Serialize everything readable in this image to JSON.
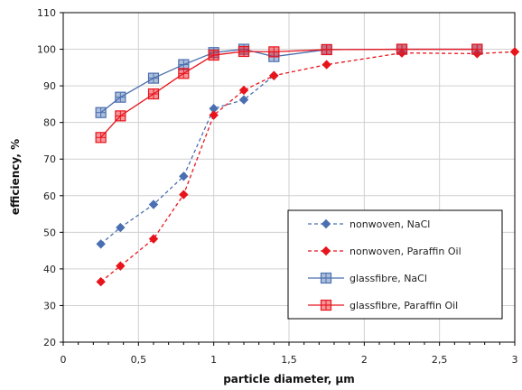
{
  "chart_data": {
    "type": "line",
    "xlabel": "particle diameter, µm",
    "ylabel": "efficiency, %",
    "xlim": [
      0,
      3
    ],
    "ylim": [
      20,
      110
    ],
    "x_ticks": [
      0,
      0.5,
      1,
      1.5,
      2,
      2.5,
      3
    ],
    "x_tick_labels": [
      "0",
      "0,5",
      "1",
      "1,5",
      "2",
      "2,5",
      "3"
    ],
    "y_ticks": [
      20,
      30,
      40,
      50,
      60,
      70,
      80,
      90,
      100,
      110
    ],
    "y_tick_labels": [
      "20",
      "30",
      "40",
      "50",
      "60",
      "70",
      "80",
      "90",
      "100",
      "110"
    ],
    "grid": true,
    "legend_position": "bottom-right",
    "series": [
      {
        "name": "nonwoven, NaCl",
        "color": "#4a6fb0",
        "line": "dashed",
        "marker": "diamond",
        "x": [
          0.25,
          0.38,
          0.6,
          0.8,
          1.0,
          1.2,
          1.4
        ],
        "y": [
          46.8,
          51.3,
          57.6,
          65.3,
          83.8,
          86.2,
          92.8
        ]
      },
      {
        "name": "nonwoven, Paraffin Oil",
        "color": "#e8141c",
        "line": "dashed",
        "marker": "diamond",
        "x": [
          0.25,
          0.38,
          0.6,
          0.8,
          1.0,
          1.2,
          1.4,
          1.75,
          2.25,
          2.75,
          3.0
        ],
        "y": [
          36.5,
          40.8,
          48.2,
          60.3,
          82.0,
          88.8,
          92.8,
          95.8,
          99.0,
          98.8,
          99.3
        ]
      },
      {
        "name": "glassfibre, NaCl",
        "color": "#4a6fb0",
        "line": "solid",
        "marker": "square",
        "x": [
          0.25,
          0.38,
          0.6,
          0.8,
          1.0,
          1.2,
          1.4,
          1.75,
          2.25,
          2.75
        ],
        "y": [
          82.7,
          86.9,
          92.1,
          95.8,
          99.1,
          100.0,
          98.0,
          99.9,
          100.0,
          100.0
        ]
      },
      {
        "name": "glassfibre, Paraffin Oil",
        "color": "#e8141c",
        "line": "solid",
        "marker": "square",
        "x": [
          0.25,
          0.38,
          0.6,
          0.8,
          1.0,
          1.2,
          1.4,
          1.75,
          2.25,
          2.75
        ],
        "y": [
          75.9,
          81.8,
          87.8,
          93.4,
          98.4,
          99.4,
          99.3,
          99.9,
          100.0,
          100.0
        ]
      }
    ]
  }
}
